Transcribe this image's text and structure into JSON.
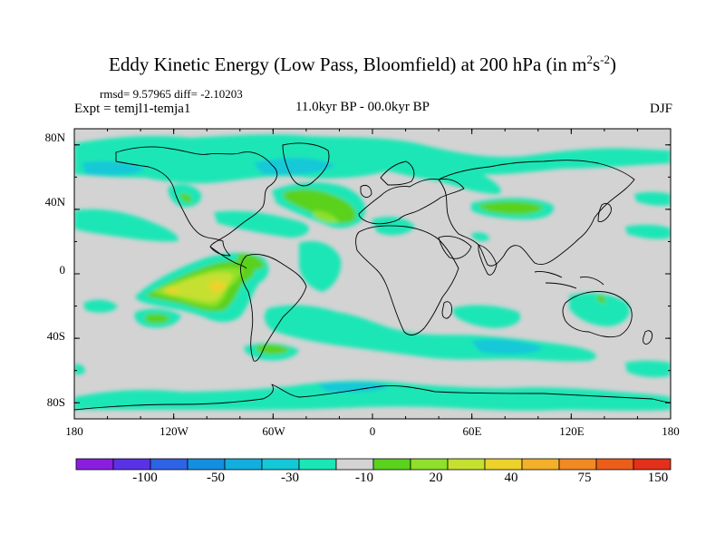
{
  "title": {
    "main": "Eddy Kinetic Energy (Low Pass, Bloomfield) at 200 hPa (in m",
    "sup1": "2",
    "s": "s",
    "sup2": "-2",
    "close": ")"
  },
  "stats": "rmsd= 9.57965 diff= -2.10203",
  "experiment": "Expt = temjl1-temja1",
  "period": "11.0kyr BP - 00.0kyr BP",
  "season": "DJF",
  "lat_ticks": [
    "80N",
    "40N",
    "0",
    "40S",
    "80S"
  ],
  "lon_ticks": [
    "180",
    "120W",
    "60W",
    "0",
    "60E",
    "120E",
    "180"
  ],
  "colorbar": {
    "labels": [
      "-100",
      "-50",
      "-30",
      "-10",
      "20",
      "40",
      "75",
      "150"
    ],
    "colors": [
      "#8a1ee0",
      "#5a32e6",
      "#2e63e6",
      "#148fe0",
      "#12aee0",
      "#14c8d8",
      "#1ae6b6",
      "#d3d3d3",
      "#5ad21e",
      "#8ee02a",
      "#c6e030",
      "#ecd22a",
      "#f4b02a",
      "#f08a22",
      "#ea5e1a",
      "#e2301a"
    ]
  },
  "colors": {
    "background": "#d3d3d3",
    "neg_weak": "#1ae6b6",
    "neg_mid": "#14c8d8",
    "neg_strong": "#12aee0",
    "pos_weak": "#5ad21e",
    "pos_mid": "#8ee02a",
    "pos_strong": "#c6e030",
    "pos_peak": "#ecd22a"
  }
}
